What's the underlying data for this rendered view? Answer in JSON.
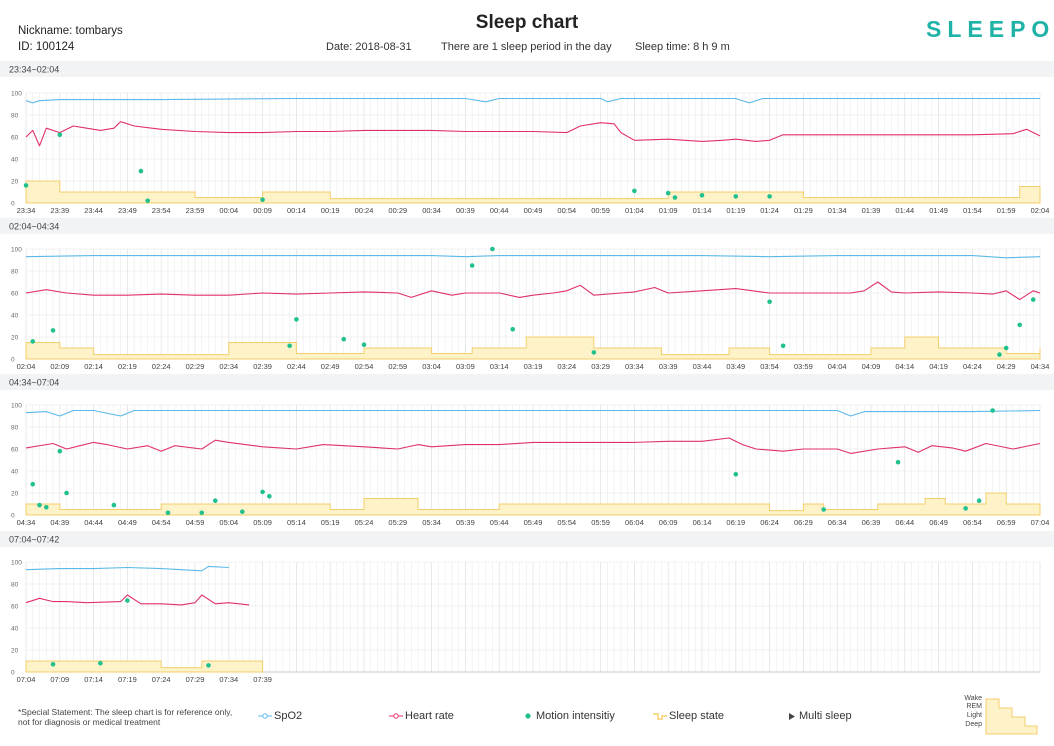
{
  "header": {
    "nickname": "Nickname: tombarys",
    "id": "ID: 100124",
    "title": "Sleep chart",
    "date": "Date: 2018-08-31",
    "periods": "There are 1 sleep period in the day",
    "sleep_time": "Sleep time: 8 h 9 m",
    "logo": "SLEEPON"
  },
  "colors": {
    "spo2": "#5bb9e8",
    "heart_rate": "#e0306a",
    "motion": "#20c08f",
    "sleep_fill": "#fdf2c8",
    "sleep_line": "#f3cf6b",
    "band": "#f2f3f5",
    "grid": "#e3e3e3",
    "logo": "#1fb3a7"
  },
  "footer": {
    "statement_line1": "*Special Statement: The sleep chart is for reference only,",
    "statement_line2": "not for diagnosis or medical treatment",
    "legend": {
      "spo2": "SpO2",
      "heart_rate": "Heart rate",
      "motion": "Motion intensitiy",
      "sleep_state": "Sleep state",
      "multi_sleep": "Multi sleep"
    },
    "state_levels": [
      "Wake",
      "REM",
      "Light",
      "Deep"
    ]
  },
  "chart_data": [
    {
      "type": "line",
      "title": "23:34~02:04",
      "x_ticks": [
        "23:34",
        "23:39",
        "23:44",
        "23:49",
        "23:54",
        "23:59",
        "00:04",
        "00:09",
        "00:14",
        "00:19",
        "00:24",
        "00:29",
        "00:34",
        "00:39",
        "00:44",
        "00:49",
        "00:54",
        "00:59",
        "01:04",
        "01:09",
        "01:14",
        "01:19",
        "01:24",
        "01:29",
        "01:34",
        "01:39",
        "01:44",
        "01:49",
        "01:54",
        "01:59",
        "02:04"
      ],
      "y_ticks": [
        0,
        20,
        40,
        60,
        80,
        100
      ],
      "ylim": [
        0,
        100
      ],
      "spo2": [
        [
          0,
          93
        ],
        [
          1,
          91
        ],
        [
          2,
          93
        ],
        [
          5,
          94
        ],
        [
          20,
          94
        ],
        [
          40,
          95
        ],
        [
          65,
          95
        ],
        [
          68,
          92
        ],
        [
          70,
          95
        ],
        [
          85,
          95
        ],
        [
          86,
          92
        ],
        [
          88,
          95
        ],
        [
          105,
          95
        ],
        [
          107,
          91
        ],
        [
          109,
          95
        ],
        [
          120,
          95
        ],
        [
          150,
          95
        ]
      ],
      "heart_rate": [
        [
          0,
          60
        ],
        [
          1,
          66
        ],
        [
          2,
          52
        ],
        [
          3,
          68
        ],
        [
          5,
          64
        ],
        [
          7,
          70
        ],
        [
          9,
          68
        ],
        [
          11,
          66
        ],
        [
          13,
          68
        ],
        [
          14,
          74
        ],
        [
          16,
          70
        ],
        [
          20,
          67
        ],
        [
          25,
          65
        ],
        [
          30,
          64
        ],
        [
          35,
          64
        ],
        [
          40,
          65
        ],
        [
          45,
          65
        ],
        [
          50,
          66
        ],
        [
          55,
          66
        ],
        [
          60,
          66
        ],
        [
          65,
          65
        ],
        [
          70,
          65
        ],
        [
          75,
          65
        ],
        [
          80,
          64
        ],
        [
          82,
          70
        ],
        [
          85,
          73
        ],
        [
          87,
          72
        ],
        [
          88,
          64
        ],
        [
          90,
          57
        ],
        [
          95,
          58
        ],
        [
          100,
          56
        ],
        [
          103,
          57
        ],
        [
          105,
          58
        ],
        [
          108,
          56
        ],
        [
          110,
          57
        ],
        [
          112,
          62
        ],
        [
          120,
          62
        ],
        [
          130,
          62
        ],
        [
          140,
          62
        ],
        [
          146,
          63
        ],
        [
          148,
          67
        ],
        [
          150,
          61
        ]
      ],
      "motion": [
        [
          0,
          16
        ],
        [
          5,
          62
        ],
        [
          17,
          29
        ],
        [
          18,
          2
        ],
        [
          35,
          3
        ],
        [
          90,
          11
        ],
        [
          95,
          9
        ],
        [
          96,
          5
        ],
        [
          100,
          7
        ],
        [
          105,
          6
        ],
        [
          110,
          6
        ]
      ],
      "sleep_state": [
        [
          0,
          20
        ],
        [
          5,
          10
        ],
        [
          25,
          5
        ],
        [
          35,
          10
        ],
        [
          45,
          4
        ],
        [
          95,
          10
        ],
        [
          115,
          5
        ],
        [
          147,
          15
        ],
        [
          150,
          15
        ]
      ]
    },
    {
      "type": "line",
      "title": "02:04~04:34",
      "x_ticks": [
        "02:04",
        "02:09",
        "02:14",
        "02:19",
        "02:24",
        "02:29",
        "02:34",
        "02:39",
        "02:44",
        "02:49",
        "02:54",
        "02:59",
        "03:04",
        "03:09",
        "03:14",
        "03:19",
        "03:24",
        "03:29",
        "03:34",
        "03:39",
        "03:44",
        "03:49",
        "03:54",
        "03:59",
        "04:04",
        "04:09",
        "04:14",
        "04:19",
        "04:24",
        "04:29",
        "04:34"
      ],
      "y_ticks": [
        0,
        20,
        40,
        60,
        80,
        100
      ],
      "ylim": [
        0,
        100
      ],
      "spo2": [
        [
          0,
          93
        ],
        [
          10,
          94
        ],
        [
          30,
          94
        ],
        [
          60,
          94
        ],
        [
          65,
          93
        ],
        [
          70,
          94
        ],
        [
          90,
          94
        ],
        [
          100,
          94
        ],
        [
          110,
          93
        ],
        [
          120,
          94
        ],
        [
          140,
          94
        ],
        [
          145,
          92
        ],
        [
          150,
          93
        ]
      ],
      "heart_rate": [
        [
          0,
          60
        ],
        [
          3,
          63
        ],
        [
          6,
          60
        ],
        [
          10,
          58
        ],
        [
          15,
          58
        ],
        [
          20,
          59
        ],
        [
          25,
          58
        ],
        [
          30,
          58
        ],
        [
          35,
          60
        ],
        [
          40,
          59
        ],
        [
          45,
          60
        ],
        [
          50,
          61
        ],
        [
          55,
          60
        ],
        [
          57,
          56
        ],
        [
          60,
          62
        ],
        [
          63,
          58
        ],
        [
          65,
          60
        ],
        [
          70,
          60
        ],
        [
          73,
          56
        ],
        [
          75,
          58
        ],
        [
          78,
          60
        ],
        [
          80,
          62
        ],
        [
          82,
          67
        ],
        [
          84,
          58
        ],
        [
          88,
          60
        ],
        [
          90,
          61
        ],
        [
          93,
          65
        ],
        [
          95,
          60
        ],
        [
          100,
          62
        ],
        [
          105,
          64
        ],
        [
          110,
          60
        ],
        [
          120,
          60
        ],
        [
          122,
          60
        ],
        [
          124,
          62
        ],
        [
          126,
          70
        ],
        [
          128,
          61
        ],
        [
          130,
          60
        ],
        [
          135,
          61
        ],
        [
          140,
          60
        ],
        [
          143,
          59
        ],
        [
          145,
          62
        ],
        [
          147,
          54
        ],
        [
          149,
          62
        ],
        [
          150,
          60
        ]
      ],
      "motion": [
        [
          1,
          16
        ],
        [
          4,
          26
        ],
        [
          40,
          36
        ],
        [
          39,
          12
        ],
        [
          47,
          18
        ],
        [
          50,
          13
        ],
        [
          66,
          85
        ],
        [
          69,
          100
        ],
        [
          72,
          27
        ],
        [
          84,
          6
        ],
        [
          110,
          52
        ],
        [
          112,
          12
        ],
        [
          144,
          4
        ],
        [
          145,
          10
        ],
        [
          147,
          31
        ],
        [
          149,
          54
        ]
      ],
      "sleep_state": [
        [
          0,
          15
        ],
        [
          5,
          10
        ],
        [
          10,
          4
        ],
        [
          30,
          15
        ],
        [
          40,
          5
        ],
        [
          50,
          10
        ],
        [
          60,
          5
        ],
        [
          66,
          10
        ],
        [
          74,
          20
        ],
        [
          84,
          10
        ],
        [
          94,
          4
        ],
        [
          104,
          10
        ],
        [
          110,
          4
        ],
        [
          125,
          10
        ],
        [
          130,
          20
        ],
        [
          135,
          10
        ],
        [
          145,
          5
        ],
        [
          159,
          10
        ],
        [
          150,
          10
        ]
      ]
    },
    {
      "type": "line",
      "title": "04:34~07:04",
      "x_ticks": [
        "04:34",
        "04:39",
        "04:44",
        "04:49",
        "04:54",
        "04:59",
        "05:04",
        "05:09",
        "05:14",
        "05:19",
        "05:24",
        "05:29",
        "05:34",
        "05:39",
        "05:44",
        "05:49",
        "05:54",
        "05:59",
        "06:04",
        "06:09",
        "06:14",
        "06:19",
        "06:24",
        "06:29",
        "06:34",
        "06:39",
        "06:44",
        "06:49",
        "06:54",
        "06:59",
        "07:04"
      ],
      "y_ticks": [
        0,
        20,
        40,
        60,
        80,
        100
      ],
      "ylim": [
        0,
        100
      ],
      "spo2": [
        [
          0,
          93
        ],
        [
          3,
          94
        ],
        [
          5,
          90
        ],
        [
          7,
          95
        ],
        [
          10,
          95
        ],
        [
          14,
          90
        ],
        [
          16,
          95
        ],
        [
          30,
          95
        ],
        [
          35,
          95
        ],
        [
          60,
          95
        ],
        [
          100,
          95
        ],
        [
          120,
          95
        ],
        [
          122,
          90
        ],
        [
          124,
          94
        ],
        [
          140,
          94
        ],
        [
          150,
          95
        ]
      ],
      "heart_rate": [
        [
          0,
          61
        ],
        [
          4,
          65
        ],
        [
          6,
          60
        ],
        [
          8,
          63
        ],
        [
          10,
          66
        ],
        [
          12,
          64
        ],
        [
          15,
          60
        ],
        [
          18,
          63
        ],
        [
          20,
          58
        ],
        [
          22,
          63
        ],
        [
          26,
          60
        ],
        [
          28,
          68
        ],
        [
          30,
          66
        ],
        [
          35,
          62
        ],
        [
          40,
          60
        ],
        [
          44,
          64
        ],
        [
          50,
          62
        ],
        [
          55,
          60
        ],
        [
          58,
          64
        ],
        [
          60,
          62
        ],
        [
          65,
          64
        ],
        [
          70,
          64
        ],
        [
          75,
          66
        ],
        [
          80,
          66
        ],
        [
          85,
          66
        ],
        [
          90,
          66
        ],
        [
          95,
          67
        ],
        [
          100,
          67
        ],
        [
          104,
          70
        ],
        [
          106,
          64
        ],
        [
          108,
          60
        ],
        [
          112,
          58
        ],
        [
          115,
          60
        ],
        [
          120,
          60
        ],
        [
          122,
          56
        ],
        [
          126,
          60
        ],
        [
          130,
          62
        ],
        [
          132,
          57
        ],
        [
          134,
          63
        ],
        [
          137,
          61
        ],
        [
          139,
          58
        ],
        [
          142,
          65
        ],
        [
          146,
          60
        ],
        [
          150,
          65
        ]
      ],
      "motion": [
        [
          1,
          28
        ],
        [
          2,
          9
        ],
        [
          3,
          7
        ],
        [
          5,
          58
        ],
        [
          6,
          20
        ],
        [
          13,
          9
        ],
        [
          21,
          2
        ],
        [
          26,
          2
        ],
        [
          28,
          13
        ],
        [
          32,
          3
        ],
        [
          35,
          21
        ],
        [
          36,
          17
        ],
        [
          105,
          37
        ],
        [
          118,
          5
        ],
        [
          129,
          48
        ],
        [
          139,
          6
        ],
        [
          141,
          13
        ],
        [
          143,
          95
        ]
      ],
      "sleep_state": [
        [
          0,
          10
        ],
        [
          5,
          5
        ],
        [
          20,
          10
        ],
        [
          45,
          5
        ],
        [
          50,
          15
        ],
        [
          58,
          5
        ],
        [
          70,
          10
        ],
        [
          110,
          4
        ],
        [
          115,
          10
        ],
        [
          118,
          5
        ],
        [
          126,
          10
        ],
        [
          133,
          15
        ],
        [
          136,
          10
        ],
        [
          140,
          10
        ],
        [
          142,
          20
        ],
        [
          145,
          10
        ],
        [
          150,
          10
        ]
      ]
    },
    {
      "type": "line",
      "title": "07:04~07:42",
      "x_ticks": [
        "07:04",
        "07:09",
        "07:14",
        "07:19",
        "07:24",
        "07:29",
        "07:34",
        "07:39"
      ],
      "y_ticks": [
        0,
        20,
        40,
        60,
        80,
        100
      ],
      "ylim": [
        0,
        100
      ],
      "spo2": [
        [
          0,
          93
        ],
        [
          5,
          94
        ],
        [
          10,
          94
        ],
        [
          15,
          95
        ],
        [
          20,
          94
        ],
        [
          26,
          92
        ],
        [
          27,
          96
        ],
        [
          30,
          95
        ],
        [
          38,
          95
        ]
      ],
      "heart_rate": [
        [
          0,
          63
        ],
        [
          2,
          67
        ],
        [
          4,
          64
        ],
        [
          6,
          64
        ],
        [
          9,
          63
        ],
        [
          14,
          64
        ],
        [
          15,
          70
        ],
        [
          17,
          62
        ],
        [
          20,
          62
        ],
        [
          23,
          61
        ],
        [
          25,
          63
        ],
        [
          26,
          70
        ],
        [
          28,
          62
        ],
        [
          30,
          63
        ],
        [
          33,
          61
        ],
        [
          36,
          68
        ],
        [
          38,
          67
        ]
      ],
      "motion": [
        [
          4,
          7
        ],
        [
          11,
          8
        ],
        [
          15,
          65
        ],
        [
          27,
          6
        ]
      ],
      "sleep_state": [
        [
          0,
          10
        ],
        [
          20,
          4
        ],
        [
          26,
          10
        ],
        [
          36,
          4
        ],
        [
          37,
          15
        ],
        [
          38,
          15
        ]
      ]
    }
  ]
}
